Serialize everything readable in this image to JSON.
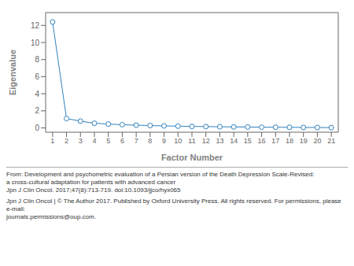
{
  "chart_data": {
    "type": "line",
    "x": [
      1,
      2,
      3,
      4,
      5,
      6,
      7,
      8,
      9,
      10,
      11,
      12,
      13,
      14,
      15,
      16,
      17,
      18,
      19,
      20,
      21
    ],
    "values": [
      12.4,
      1.1,
      0.8,
      0.55,
      0.45,
      0.38,
      0.32,
      0.28,
      0.24,
      0.21,
      0.18,
      0.16,
      0.14,
      0.12,
      0.11,
      0.09,
      0.08,
      0.07,
      0.06,
      0.05,
      0.04
    ],
    "xlabel": "Factor Number",
    "ylabel": "Eigenvalue",
    "xlim": [
      0.5,
      21.5
    ],
    "ylim": [
      -0.5,
      13.5
    ],
    "xticks": [
      1,
      2,
      3,
      4,
      5,
      6,
      7,
      8,
      9,
      10,
      11,
      12,
      13,
      14,
      15,
      16,
      17,
      18,
      19,
      20,
      21
    ],
    "yticks": [
      0,
      2,
      4,
      6,
      8,
      10,
      12
    ],
    "grid": false,
    "marker": "circle",
    "annotations": [
      "From: Development and psychometric evaluation of a Persian version of the Death Depression Scale-Revised:",
      "a cross-cultural adaptation for patients with advanced cancer",
      "Jpn J Clin Oncol. 2017;47(8):713-719. doi:10.1093/jjco/hyx065",
      "Jpn J Clin Oncol | © The Author 2017. Published by Oxford University Press. All rights reserved. For permissions, please e-mail:",
      "journals.permissions@oup.com."
    ]
  }
}
